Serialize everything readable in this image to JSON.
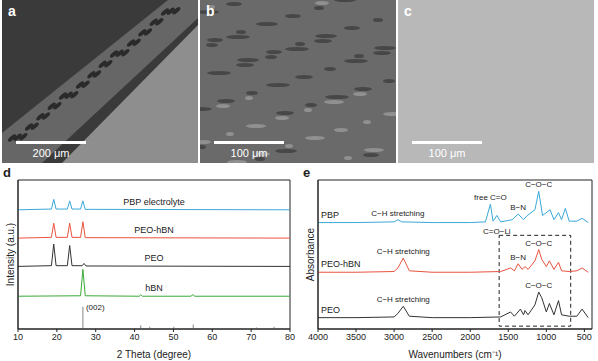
{
  "images": [
    {
      "label": "a",
      "scale_bar": "200 μm"
    },
    {
      "label": "b",
      "scale_bar": "100 μm"
    },
    {
      "label": "c",
      "scale_bar": "100 μm"
    }
  ],
  "chart_data": [
    {
      "title": "d",
      "type": "line",
      "x_label": "2 Theta (degree)",
      "y_label": "Intensity (a.u.)",
      "xlim": [
        10,
        80
      ],
      "xticks": [
        10,
        20,
        30,
        40,
        50,
        60,
        70,
        80
      ],
      "ylim": [
        0,
        100
      ],
      "tick_labels": "x",
      "series": [
        {
          "name": "PBP electrolyte",
          "color": "#3ba8d9",
          "x": [
            10,
            18.6,
            19.2,
            19.8,
            22.7,
            23.3,
            23.9,
            26.1,
            26.7,
            27.3,
            80
          ],
          "values": [
            80,
            80.5,
            87,
            80.5,
            80.5,
            86,
            80.5,
            80.5,
            86,
            80.3,
            80
          ]
        },
        {
          "name": "PEO-hBN",
          "color": "#e8533f",
          "x": [
            10,
            18.6,
            19.2,
            19.8,
            22.7,
            23.3,
            23.9,
            26.1,
            26.7,
            27.3,
            80
          ],
          "values": [
            61,
            61.5,
            71,
            61.5,
            61.5,
            71,
            61.5,
            61.5,
            72,
            61.3,
            61
          ]
        },
        {
          "name": "PEO",
          "color": "#333333",
          "x": [
            10,
            18.6,
            19.2,
            19.8,
            22.7,
            23.3,
            23.9,
            26.5,
            27,
            27.5,
            80
          ],
          "values": [
            42,
            42.5,
            57,
            42.5,
            42.5,
            56,
            42.5,
            42.5,
            44,
            42.3,
            42
          ]
        },
        {
          "name": "hBN",
          "color": "#3aaa35",
          "x": [
            10,
            26.1,
            26.7,
            27.3,
            41.2,
            41.6,
            42,
            54.5,
            55,
            55.5,
            80
          ],
          "values": [
            22,
            22.3,
            40,
            22.3,
            22,
            23,
            22,
            22,
            23,
            22,
            22
          ]
        }
      ],
      "reference_pattern": {
        "x": [
          26.7,
          41.6,
          43.9,
          50.1,
          55.1,
          71.4,
          75.9
        ],
        "values": [
          15,
          2.5,
          1.5,
          1.5,
          3,
          1,
          1.5
        ],
        "labels": [
          "(002)",
          null,
          null,
          null,
          null,
          null,
          null
        ],
        "color": "#888888"
      }
    },
    {
      "title": "e",
      "type": "line",
      "x_label": "Wavenumbers (cm⁻¹)",
      "y_label": "Absorbance",
      "xlim": [
        4000,
        400
      ],
      "xticks": [
        4000,
        3500,
        3000,
        2500,
        2000,
        1500,
        1000,
        500
      ],
      "ylim": [
        0,
        105
      ],
      "tick_labels": "x",
      "series": [
        {
          "name": "PBP",
          "color": "#3ba8d9",
          "x": [
            4000,
            3500,
            3000,
            2950,
            2900,
            2500,
            2000,
            1800,
            1735,
            1700,
            1650,
            1600,
            1450,
            1370,
            1300,
            1250,
            1150,
            1100,
            1050,
            950,
            900,
            840,
            800,
            750,
            700,
            600,
            530,
            450
          ],
          "values": [
            75,
            75,
            75.5,
            77,
            75.5,
            75,
            75,
            75.5,
            88,
            76,
            80,
            75.5,
            77,
            81,
            77,
            80,
            84,
            97,
            80,
            84,
            77,
            82,
            77,
            85,
            76,
            76,
            78,
            75
          ],
          "annotations": [
            {
              "text": "C−H stretching",
              "x": 2950
            },
            {
              "text": "free C=O",
              "x": 1735
            },
            {
              "text": "C=O−Li",
              "x": 1650
            },
            {
              "text": "B−N",
              "x": 1370
            },
            {
              "text": "C−O−C",
              "x": 1100
            }
          ]
        },
        {
          "name": "PEO-hBN",
          "color": "#e8533f",
          "x": [
            4000,
            3500,
            3000,
            2950,
            2880,
            2800,
            2500,
            2000,
            1600,
            1470,
            1420,
            1370,
            1320,
            1280,
            1240,
            1150,
            1100,
            1060,
            1000,
            960,
            900,
            840,
            800,
            700,
            600,
            530,
            450
          ],
          "values": [
            40,
            40,
            40.5,
            43,
            50,
            41,
            40,
            40,
            40.5,
            43,
            41,
            46,
            42,
            44,
            42,
            48,
            56,
            49,
            44,
            48,
            42,
            47,
            41,
            40.5,
            41,
            43,
            40
          ],
          "annotations": [
            {
              "text": "C−H stretching",
              "x": 2880
            },
            {
              "text": "B−N",
              "x": 1370
            },
            {
              "text": "C−O−C",
              "x": 1100
            }
          ]
        },
        {
          "name": "PEO",
          "color": "#333333",
          "x": [
            4000,
            3500,
            3000,
            2950,
            2880,
            2800,
            2500,
            2000,
            1600,
            1470,
            1420,
            1340,
            1300,
            1280,
            1240,
            1150,
            1100,
            1060,
            1000,
            960,
            900,
            840,
            800,
            700,
            600,
            530,
            450
          ],
          "values": [
            8,
            8,
            8.5,
            11,
            16,
            9,
            8,
            8,
            8.5,
            12,
            9,
            14,
            10,
            13,
            10,
            17,
            26,
            22,
            12,
            18,
            10,
            20,
            10,
            9,
            9,
            14,
            8
          ],
          "annotations": [
            {
              "text": "C−H stretching",
              "x": 2880
            },
            {
              "text": "C−O−C",
              "x": 1100
            }
          ]
        }
      ],
      "highlight_box": {
        "x": [
          1620,
          680
        ],
        "y": [
          2,
          66
        ],
        "line_style": "dashed"
      }
    }
  ]
}
